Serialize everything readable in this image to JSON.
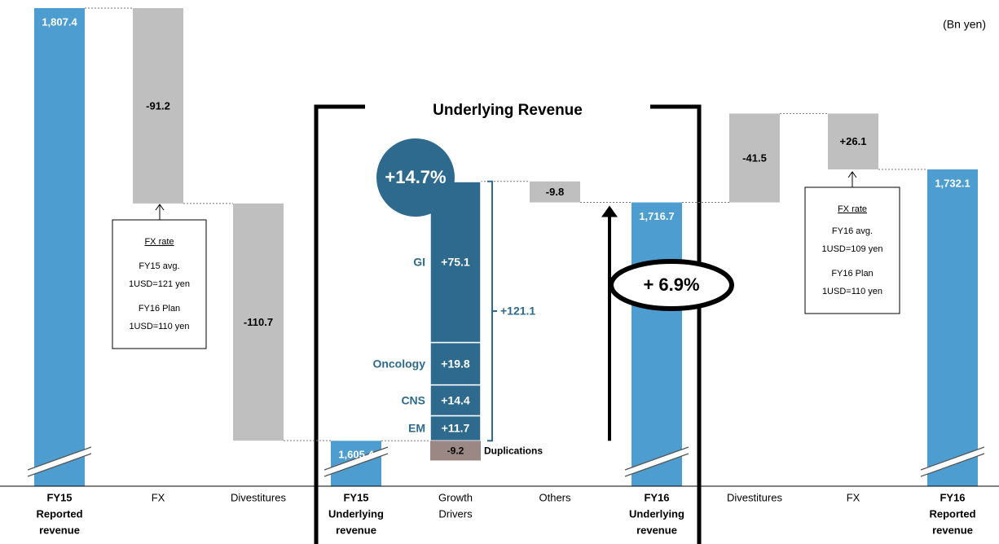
{
  "chart_data": {
    "type": "waterfall",
    "unit": "(Bn yen)",
    "title": "Underlying Revenue",
    "bars": [
      {
        "label_lines": [
          "FY15",
          "Reported",
          "revenue"
        ],
        "value": 1807.4,
        "value_label": "1,807.4",
        "kind": "total"
      },
      {
        "label_lines": [
          "FX"
        ],
        "value": -91.2,
        "value_label": "-91.2",
        "kind": "change"
      },
      {
        "label_lines": [
          "Divestitures"
        ],
        "value": -110.7,
        "value_label": "-110.7",
        "kind": "change"
      },
      {
        "label_lines": [
          "FY15",
          "Underlying",
          "revenue"
        ],
        "value": 1605.4,
        "value_label": "1,605.4",
        "kind": "total"
      },
      {
        "label_lines": [
          "Growth",
          "Drivers"
        ],
        "value": 121.1,
        "value_label": "+121.1",
        "kind": "breakdown"
      },
      {
        "label_lines": [
          "Others"
        ],
        "value": -9.8,
        "value_label": "-9.8",
        "kind": "change"
      },
      {
        "label_lines": [
          "FY16",
          "Underlying",
          "revenue"
        ],
        "value": 1716.7,
        "value_label": "1,716.7",
        "kind": "total"
      },
      {
        "label_lines": [
          "Divestitures"
        ],
        "value": -41.5,
        "value_label": "-41.5",
        "kind": "change"
      },
      {
        "label_lines": [
          "FX"
        ],
        "value": 26.1,
        "value_label": "+26.1",
        "kind": "change"
      },
      {
        "label_lines": [
          "FY16",
          "Reported",
          "revenue"
        ],
        "value": 1732.1,
        "value_label": "1,732.1",
        "kind": "total"
      }
    ],
    "drivers": [
      {
        "name": "GI",
        "value": 75.1,
        "value_label": "+75.1"
      },
      {
        "name": "Oncology",
        "value": 19.8,
        "value_label": "+19.8"
      },
      {
        "name": "CNS",
        "value": 14.4,
        "value_label": "+14.4"
      },
      {
        "name": "EM",
        "value": 11.7,
        "value_label": "+11.7"
      }
    ],
    "duplications": {
      "name": "Duplications",
      "value": -9.2,
      "value_label": "-9.2"
    },
    "growth_drivers_pct": "+14.7%",
    "underlying_growth": "+ 6.9%",
    "fx_notes": [
      {
        "title": "FX rate",
        "lines": [
          "FY15 avg.",
          "1USD=121 yen",
          "FY16 Plan",
          "1USD=110 yen"
        ]
      },
      {
        "title": "FX rate",
        "lines": [
          "FY16 avg.",
          "1USD=109 yen",
          "FY16 Plan",
          "1USD=110 yen"
        ]
      }
    ],
    "colors": {
      "total": "#4d9dd1",
      "change": "#bfbfbf",
      "breakdown": "#2e6a8e",
      "duplications": "#9b8783",
      "driver_text": "#2e6a8e"
    }
  }
}
